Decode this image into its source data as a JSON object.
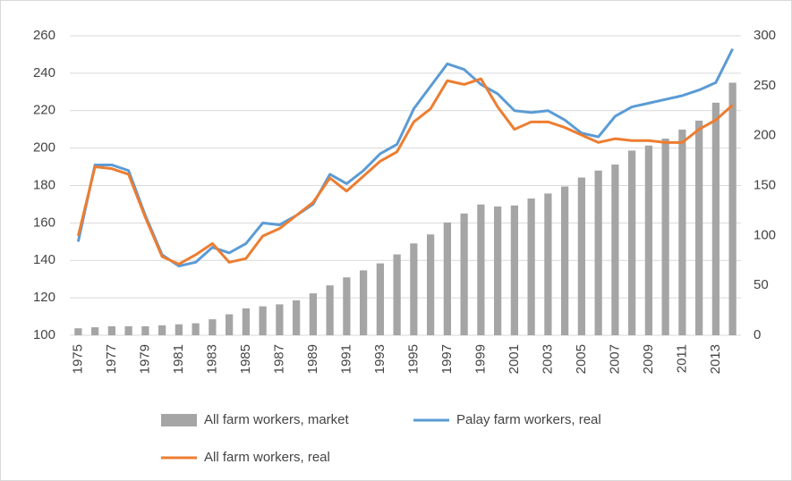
{
  "chart_data": {
    "type": "bar_line",
    "categories": [
      "1975",
      null,
      "1977",
      null,
      "1979",
      null,
      "1981",
      null,
      "1983",
      null,
      "1985",
      null,
      "1987",
      null,
      "1989",
      null,
      "1991",
      null,
      "1993",
      null,
      "1995",
      null,
      "1997",
      null,
      "1999",
      null,
      "2001",
      null,
      "2003",
      null,
      "2005",
      null,
      "2007",
      null,
      "2009",
      null,
      "2011",
      null,
      "2013",
      null
    ],
    "series": [
      {
        "name": "All farm workers, market",
        "type": "bar",
        "axis": "y2",
        "color": "#a5a5a5",
        "values": [
          7,
          8,
          9,
          9,
          9,
          10,
          11,
          12,
          16,
          21,
          27,
          29,
          31,
          35,
          42,
          50,
          58,
          65,
          72,
          81,
          92,
          101,
          113,
          122,
          131,
          129,
          130,
          137,
          142,
          149,
          158,
          165,
          171,
          185,
          190,
          197,
          206,
          215,
          233,
          253
        ]
      },
      {
        "name": "Palay farm workers, real",
        "type": "line",
        "color": "#5b9bd5",
        "values": [
          150,
          191,
          191,
          188,
          164,
          143,
          137,
          139,
          147,
          144,
          149,
          160,
          159,
          164,
          170,
          186,
          181,
          188,
          197,
          202,
          221,
          233,
          245,
          242,
          234,
          229,
          220,
          219,
          220,
          215,
          208,
          206,
          217,
          222,
          224,
          226,
          228,
          231,
          235,
          253
        ]
      },
      {
        "name": "All farm workers, real",
        "type": "line",
        "color": "#ed7d31",
        "values": [
          153,
          190,
          189,
          186,
          163,
          142,
          138,
          143,
          149,
          139,
          141,
          153,
          157,
          164,
          171,
          184,
          177,
          185,
          193,
          198,
          214,
          221,
          236,
          234,
          237,
          222,
          210,
          214,
          214,
          211,
          207,
          203,
          205,
          204,
          204,
          203,
          203,
          210,
          215,
          223
        ]
      }
    ],
    "ylim": [
      100,
      260
    ],
    "yticks": [
      100,
      120,
      140,
      160,
      180,
      200,
      220,
      240,
      260
    ],
    "y2lim": [
      0,
      300
    ],
    "y2ticks": [
      0,
      50,
      100,
      150,
      200,
      250,
      300
    ]
  }
}
